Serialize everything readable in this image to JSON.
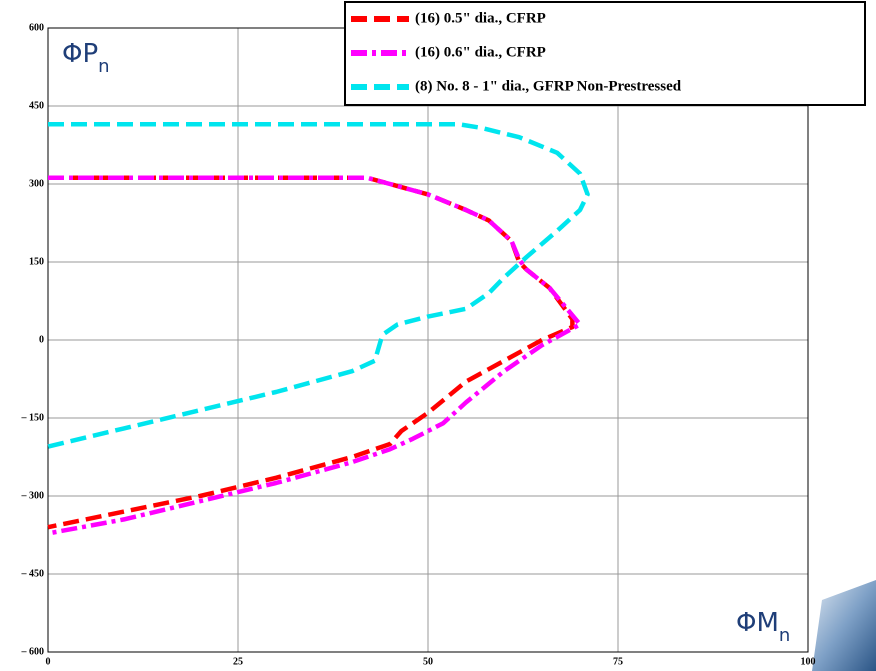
{
  "chart_data": {
    "type": "line",
    "ylabel": "ΦP",
    "ylabel_sub": "n",
    "xlabel": "ΦM",
    "xlabel_sub": "n",
    "xlim": [
      0,
      100
    ],
    "xticks": [
      0,
      25,
      50,
      75,
      100
    ],
    "ylim": [
      -600,
      600
    ],
    "yticks": [
      {
        "value": -600,
        "label": "– 600"
      },
      {
        "value": -450,
        "label": "– 450"
      },
      {
        "value": -300,
        "label": "– 300"
      },
      {
        "value": -150,
        "label": "– 150"
      },
      0,
      150,
      300,
      450,
      600
    ],
    "grid": true,
    "legend": "top-right",
    "series": [
      {
        "name": "(16) 0.5\" dia., CFRP",
        "color": "#ff0000",
        "dash": "dashed",
        "x": [
          0,
          42,
          45,
          50,
          55,
          58,
          61,
          62,
          63,
          66,
          69,
          69,
          65,
          60,
          55,
          50,
          48,
          46.5,
          45,
          40,
          30,
          20,
          10,
          0
        ],
        "values": [
          312,
          312,
          300,
          280,
          250,
          230,
          190,
          150,
          135,
          100,
          40,
          25,
          0,
          -40,
          -80,
          -140,
          -160,
          -175,
          -200,
          -225,
          -265,
          -300,
          -330,
          -360
        ]
      },
      {
        "name": "(16) 0.6\" dia., CFRP",
        "color": "#ff00ff",
        "dash": "dashdot",
        "x": [
          0,
          42,
          45,
          50,
          55,
          58,
          61,
          62,
          63,
          66,
          70,
          65,
          60,
          55,
          52,
          48,
          45,
          40,
          30,
          20,
          10,
          0
        ],
        "values": [
          312,
          312,
          300,
          280,
          250,
          230,
          190,
          155,
          135,
          100,
          30,
          -10,
          -60,
          -120,
          -160,
          -190,
          -210,
          -235,
          -275,
          -310,
          -345,
          -372
        ]
      },
      {
        "name": "(8) No. 8 - 1\" dia., GFRP Non-Prestressed",
        "color": "#00e5ee",
        "dash": "dashed",
        "x": [
          0,
          54,
          57,
          62,
          67,
          70,
          71,
          70,
          67,
          63,
          60,
          58,
          55,
          50,
          46,
          44,
          43,
          40,
          30,
          20,
          10,
          0
        ],
        "values": [
          415,
          415,
          408,
          390,
          360,
          320,
          280,
          250,
          210,
          160,
          120,
          90,
          60,
          45,
          30,
          10,
          -40,
          -60,
          -100,
          -135,
          -170,
          -205
        ]
      }
    ]
  }
}
